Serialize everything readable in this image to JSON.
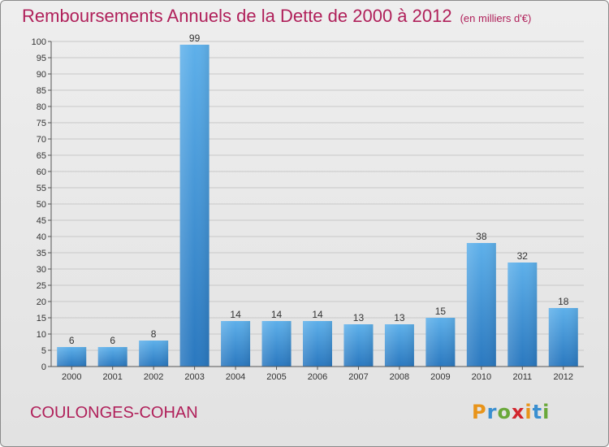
{
  "title": "Remboursements Annuels de la Dette de 2000 à 2012",
  "subtitle": "(en milliers d'€)",
  "location": "COULONGES-COHAN",
  "logo": {
    "text": "Proxiti",
    "colors": [
      "#e8941a",
      "#3a8fd0",
      "#6aa83a",
      "#d2262e",
      "#e8941a",
      "#3a8fd0",
      "#6aa83a"
    ]
  },
  "colors": {
    "title": "#b0205a",
    "bar_light": "#5eb0ea",
    "bar_dark": "#2a78bf",
    "axis": "#555555",
    "grid": "#c8c8c8"
  },
  "chart_data": {
    "type": "bar",
    "title": "Remboursements Annuels de la Dette de 2000 à 2012",
    "subtitle": "(en milliers d'€)",
    "categories": [
      "2000",
      "2001",
      "2002",
      "2003",
      "2004",
      "2005",
      "2006",
      "2007",
      "2008",
      "2009",
      "2010",
      "2011",
      "2012"
    ],
    "values": [
      6,
      6,
      8,
      99,
      14,
      14,
      14,
      13,
      13,
      15,
      38,
      32,
      18
    ],
    "ylim": [
      0,
      100
    ],
    "yticks": [
      0,
      5,
      10,
      15,
      20,
      25,
      30,
      35,
      40,
      45,
      50,
      55,
      60,
      65,
      70,
      75,
      80,
      85,
      90,
      95,
      100
    ],
    "data_labels": true,
    "grid": true,
    "xlabel": "",
    "ylabel": ""
  }
}
